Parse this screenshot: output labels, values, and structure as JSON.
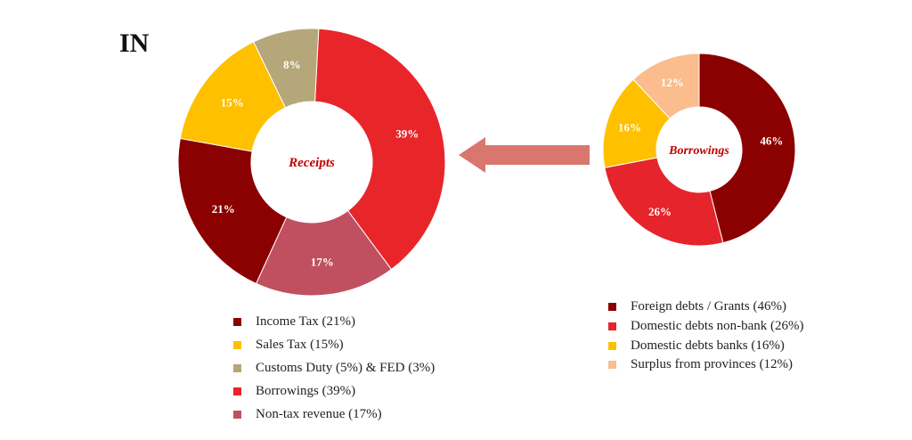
{
  "title": "IN",
  "chart_data": [
    {
      "type": "pie",
      "subtype": "donut",
      "center_label": "Receipts",
      "slices": [
        {
          "label": "Borrowings (39%)",
          "value": 39,
          "data_label": "39%",
          "color": "#e8262a"
        },
        {
          "label": "Non-tax revenue (17%)",
          "value": 17,
          "data_label": "17%",
          "color": "#c05060"
        },
        {
          "label": "Income Tax (21%)",
          "value": 21,
          "data_label": "21%",
          "color": "#8b0000"
        },
        {
          "label": "Sales Tax (15%)",
          "value": 15,
          "data_label": "15%",
          "color": "#ffc000"
        },
        {
          "label": "Customs Duty (5%) & FED (3%)",
          "value": 8,
          "data_label": "8%",
          "color": "#b5a77a"
        }
      ],
      "legend_order": [
        2,
        3,
        4,
        0,
        1
      ]
    },
    {
      "type": "pie",
      "subtype": "donut",
      "center_label": "Borrowings",
      "slices": [
        {
          "label": "Foreign debts / Grants (46%)",
          "value": 46,
          "data_label": "46%",
          "color": "#8b0000"
        },
        {
          "label": "Domestic debts non-bank (26%)",
          "value": 26,
          "data_label": "26%",
          "color": "#e5242b"
        },
        {
          "label": "Domestic debts banks (16%)",
          "value": 16,
          "data_label": "16%",
          "color": "#ffc000"
        },
        {
          "label": "Surplus from provinces (12%)",
          "value": 12,
          "data_label": "12%",
          "color": "#fbbc8e"
        }
      ],
      "legend_order": [
        0,
        1,
        2,
        3
      ]
    }
  ],
  "arrow_color": "#d9776f"
}
